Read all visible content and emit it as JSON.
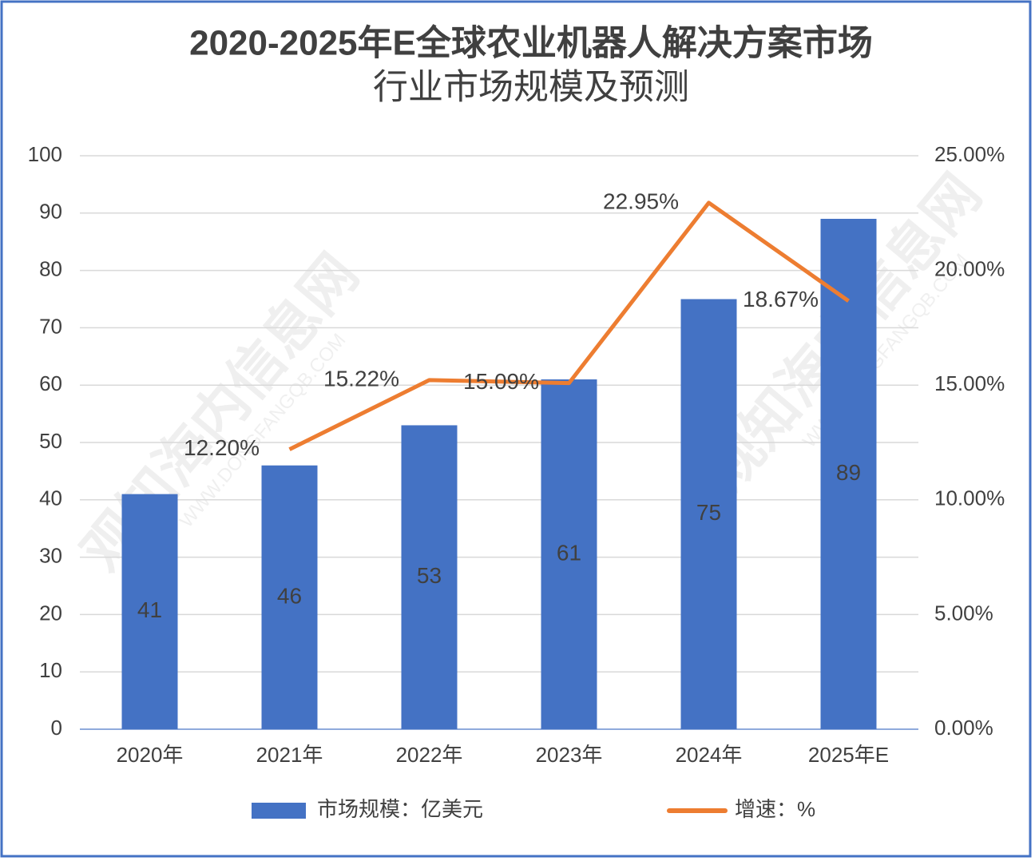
{
  "chart_data": {
    "type": "bar_line",
    "title": [
      "2020-2025年E全球农业机器人解决方案市场",
      "行业市场规模及预测"
    ],
    "watermark": [
      "观知海内信息网",
      "WWW.DONGFANGQB.COM"
    ],
    "categories": [
      "2020年",
      "2021年",
      "2022年",
      "2023年",
      "2024年",
      "2025年E"
    ],
    "series": [
      {
        "name": "市场规模：亿美元",
        "color": "#4472c4",
        "kind": "bar",
        "values": [
          41,
          46,
          53,
          61,
          75,
          89
        ]
      },
      {
        "name": "增速：%",
        "color": "#ed7d31",
        "kind": "line",
        "axis": "y2",
        "values": [
          null,
          12.2,
          15.22,
          15.09,
          22.95,
          18.67
        ],
        "value_labels": [
          null,
          "12.20%",
          "15.22%",
          "15.09%",
          "22.95%",
          "18.67%"
        ]
      }
    ],
    "ylim": [
      0,
      100
    ],
    "yticks": [
      0,
      10,
      20,
      30,
      40,
      50,
      60,
      70,
      80,
      90,
      100
    ],
    "y2lim": [
      0,
      25
    ],
    "y2ticks": [
      {
        "value": 0,
        "label": "0.00%"
      },
      {
        "value": 5,
        "label": "5.00%"
      },
      {
        "value": 10,
        "label": "10.00%"
      },
      {
        "value": 15,
        "label": "15.00%"
      },
      {
        "value": 20,
        "label": "20.00%"
      },
      {
        "value": 25,
        "label": "25.00%"
      }
    ],
    "grid": true,
    "legend": "bottom"
  }
}
